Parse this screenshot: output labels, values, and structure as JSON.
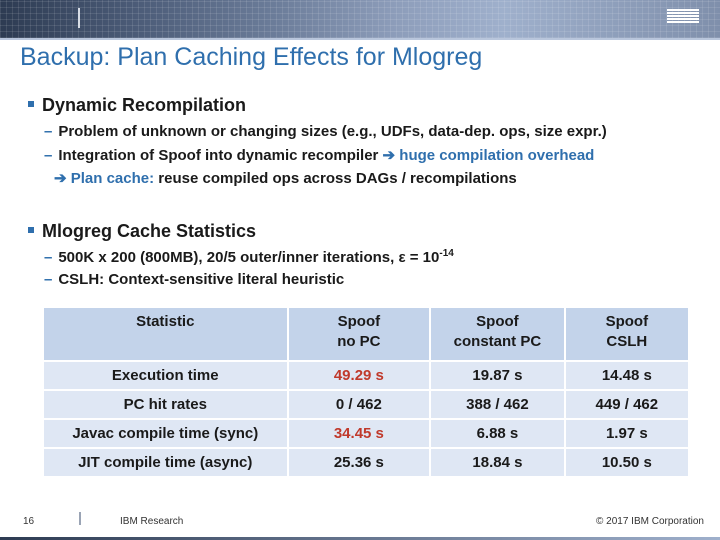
{
  "title": "Backup: Plan Caching Effects for Mlogreg",
  "section1": {
    "heading": "Dynamic Recompilation",
    "line1": "Problem of unknown or changing sizes (e.g., UDFs, data-dep. ops, size expr.)",
    "line2_prefix": "Integration of Spoof into dynamic recompiler ",
    "line2_highlight": "huge compilation overhead",
    "line3_highlight": "Plan cache:",
    "line3_rest": " reuse compiled ops across DAGs / recompilations"
  },
  "section2": {
    "heading": "Mlogreg Cache Statistics",
    "line1_main": "500K x 200 (800MB), 20/5 outer/inner iterations, ε = 10",
    "line1_sup": "-14",
    "line2": "CSLH: Context-sensitive literal heuristic"
  },
  "table": {
    "headers": [
      {
        "l1": "Statistic",
        "l2": ""
      },
      {
        "l1": "Spoof",
        "l2": "no PC"
      },
      {
        "l1": "Spoof",
        "l2": "constant PC"
      },
      {
        "l1": "Spoof",
        "l2": "CSLH"
      }
    ],
    "rows": [
      {
        "label": "Execution time",
        "c1": "49.29 s",
        "c2": "19.87 s",
        "c3": "14.48 s"
      },
      {
        "label": "PC hit rates",
        "c1": "0 / 462",
        "c2": "388 / 462",
        "c3": "449 / 462"
      },
      {
        "label": "Javac compile time (sync)",
        "c1": "34.45 s",
        "c2": "6.88 s",
        "c3": "1.97 s"
      },
      {
        "label": "JIT compile time (async)",
        "c1": "25.36 s",
        "c2": "18.84 s",
        "c3": "10.50 s"
      }
    ]
  },
  "footer": {
    "page": "16",
    "left": "IBM Research",
    "right": "© 2017 IBM Corporation"
  },
  "colors": {
    "accent": "#2f6fad",
    "highlight_red": "#c0392b",
    "header_fill": "#c3d3ea",
    "row_fill": "#dfe7f4"
  }
}
